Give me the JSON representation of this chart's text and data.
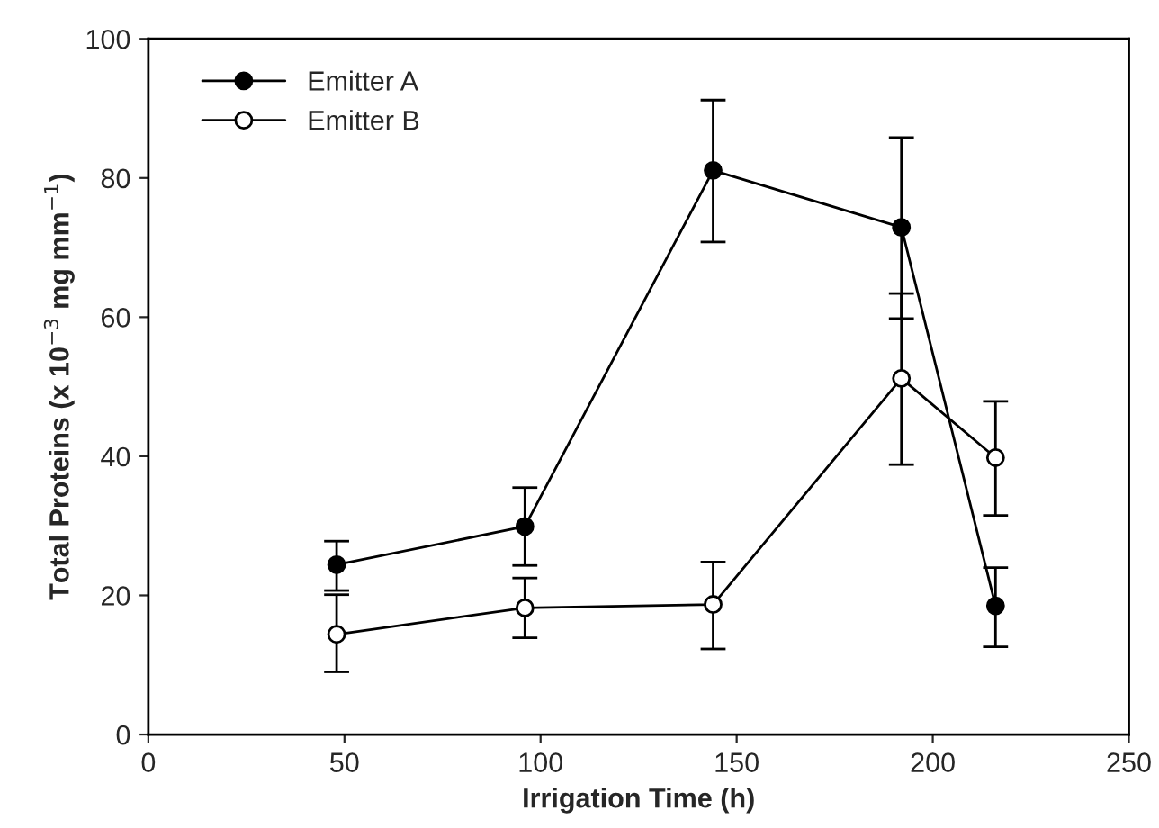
{
  "chart_data": {
    "type": "line",
    "xlabel": "Irrigation Time (h)",
    "ylabel": "Total Proteins (x 10$^{−3}$ mg mm$^{−1}$)",
    "x": [
      48,
      96,
      144,
      192,
      216
    ],
    "series": [
      {
        "name": "Emitter A",
        "color": "#000000",
        "values": [
          24.4,
          29.9,
          81.1,
          72.9,
          18.5
        ],
        "errors": [
          [
            20.7,
            27.8
          ],
          [
            24.3,
            35.5
          ],
          [
            70.8,
            91.2
          ],
          [
            59.8,
            85.8
          ],
          [
            12.6,
            24.0
          ]
        ]
      },
      {
        "name": "Emitter B",
        "color": "#000000",
        "values": [
          14.4,
          18.2,
          18.7,
          51.2,
          39.8
        ],
        "errors": [
          [
            9.0,
            20.1
          ],
          [
            13.9,
            22.5
          ],
          [
            12.3,
            24.8
          ],
          [
            38.8,
            63.4
          ],
          [
            31.5,
            47.9
          ]
        ]
      }
    ],
    "xlim": [
      0,
      250
    ],
    "xticks": [
      0,
      50,
      100,
      150,
      200,
      250
    ],
    "ylim": [
      0,
      100
    ],
    "yticks": [
      0,
      20,
      40,
      60,
      80,
      100
    ],
    "marker": "circle",
    "line_style": "solid",
    "legend": "top left",
    "grid": false
  }
}
